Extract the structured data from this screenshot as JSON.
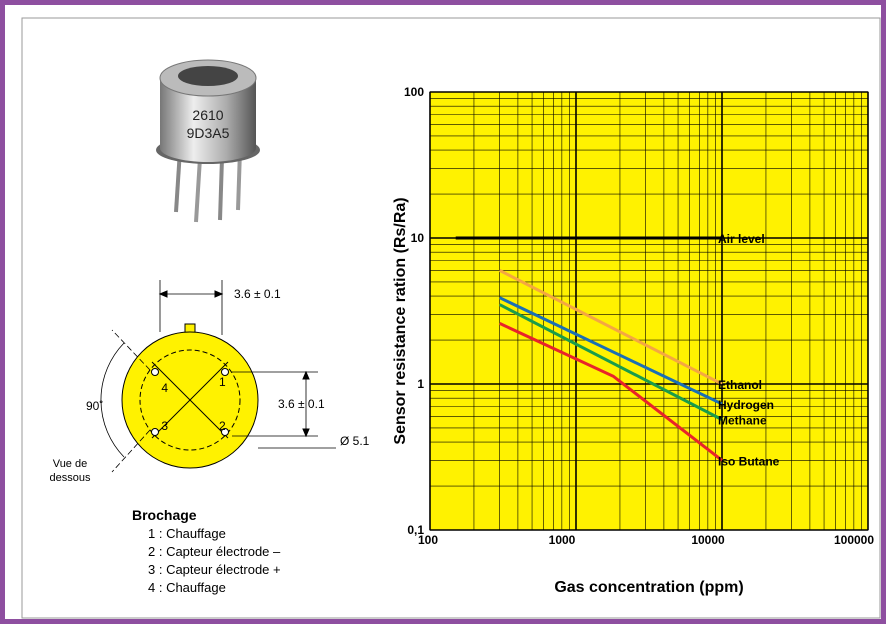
{
  "photo": {
    "marking": [
      "2610",
      "9D3A5"
    ]
  },
  "pinout": {
    "pins": [
      "1",
      "2",
      "3",
      "4"
    ],
    "dim_top": "3.6 ± 0.1",
    "dim_right": "3.6 ± 0.1",
    "diameter": "Ø 5.1",
    "angle": "90˚",
    "view": [
      "Vue de",
      "dessous"
    ]
  },
  "brochage": {
    "title": "Brochage",
    "items": [
      "1 : Chauffage",
      "2 : Capteur électrode –",
      "3 : Capteur électrode +",
      "4 : Chauffage"
    ]
  },
  "chart_data": {
    "type": "line",
    "x_label": "Gas concentration (ppm)",
    "y_label": "Sensor resistance ration (Rs/Ra)",
    "xlog": true,
    "ylog": true,
    "xlim": [
      100,
      100000
    ],
    "ylim": [
      0.1,
      100
    ],
    "xticks": [
      100,
      1000,
      10000,
      100000
    ],
    "yticks": [
      {
        "value": 0.1,
        "label": "0,1"
      },
      1,
      10,
      100
    ],
    "grid": true,
    "minor_grid": true,
    "background": "#fff200",
    "series": [
      {
        "name": "Air level",
        "color": "#000000",
        "x": [
          150,
          10000
        ],
        "values": [
          10,
          10
        ]
      },
      {
        "name": "Ethanol",
        "color": "#f4a742",
        "x": [
          300,
          10000
        ],
        "values": [
          6,
          1
        ]
      },
      {
        "name": "Hydrogen",
        "color": "#1a6fb5",
        "x": [
          300,
          10000
        ],
        "values": [
          3.9,
          0.73
        ]
      },
      {
        "name": "Methane",
        "color": "#1a9c4a",
        "x": [
          300,
          10000
        ],
        "values": [
          3.5,
          0.57
        ]
      },
      {
        "name": "Iso Butane",
        "color": "#e8232a",
        "x": [
          300,
          1800,
          10000
        ],
        "values": [
          2.6,
          1.13,
          0.3
        ]
      }
    ]
  }
}
